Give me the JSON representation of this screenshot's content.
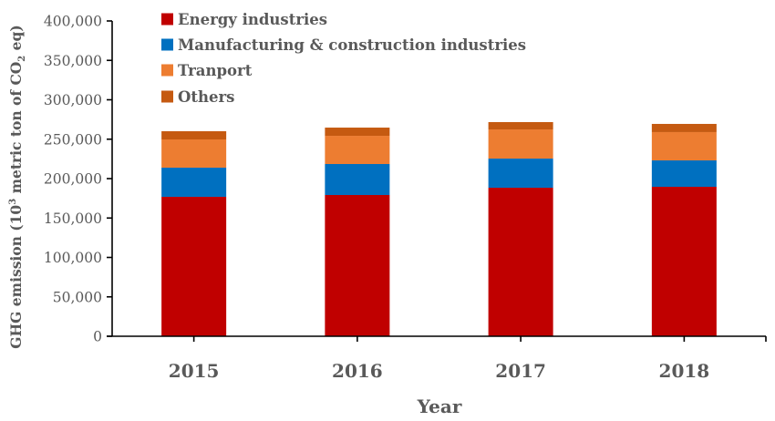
{
  "chart_data": {
    "type": "bar",
    "stacked": true,
    "title": "",
    "xlabel": "Year",
    "ylabel": {
      "prefix": "GHG emission (10",
      "sup": "3",
      "middle": " metric ton of CO",
      "sub": "2",
      "suffix": " eq)"
    },
    "categories": [
      "2015",
      "2016",
      "2017",
      "2018"
    ],
    "ylim": [
      0,
      400000
    ],
    "y_ticks": [
      0,
      50000,
      100000,
      150000,
      200000,
      250000,
      300000,
      350000,
      400000
    ],
    "y_tick_labels": [
      "0",
      "50,000",
      "100,000",
      "150,000",
      "200,000",
      "250,000",
      "300,000",
      "350,000",
      "400,000"
    ],
    "grid": false,
    "legend_position": "top-left",
    "series": [
      {
        "name": "Energy industries",
        "color": "#C00000",
        "values": [
          176900,
          179200,
          188400,
          189600
        ]
      },
      {
        "name": "Manufacturing & construction industries",
        "color": "#0070C0",
        "values": [
          37000,
          39300,
          37000,
          33500
        ]
      },
      {
        "name": "Tranport",
        "color": "#ED7D31",
        "values": [
          35800,
          35800,
          37000,
          35900
        ]
      },
      {
        "name": "Others",
        "color": "#C55A11",
        "values": [
          10400,
          10400,
          9300,
          10400
        ]
      }
    ]
  }
}
